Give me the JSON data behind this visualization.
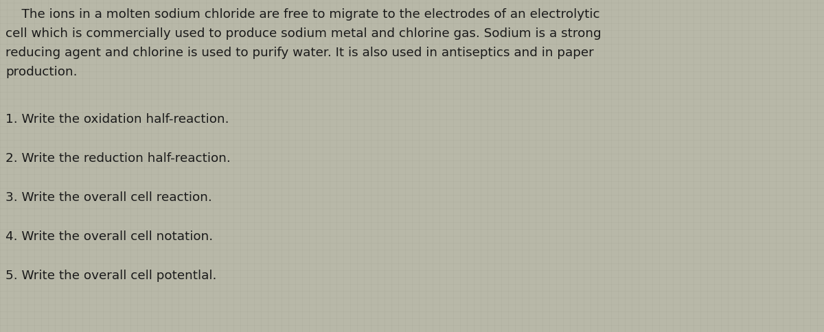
{
  "background_color": "#b8b8a8",
  "grid_color": "#a0a090",
  "text_color": "#1a1a1a",
  "paragraph_lines": [
    "    The ions in a molten sodium chloride are free to migrate to the electrodes of an electrolytic",
    "cell which is commercially used to produce sodium metal and chlorine gas. Sodium is a strong",
    "reducing agent and chlorine is used to purify water. It is also used in antiseptics and in paper",
    "production."
  ],
  "questions": [
    "1. Write the oxidation half-reaction.",
    "2. Write the reduction half-reaction.",
    "3. Write the overall cell reaction.",
    "4. Write the overall cell notation.",
    "5. Write the overall cell potentlal."
  ],
  "font_size_paragraph": 13.2,
  "font_size_questions": 13.2,
  "figsize": [
    12.0,
    4.84
  ],
  "dpi": 100
}
